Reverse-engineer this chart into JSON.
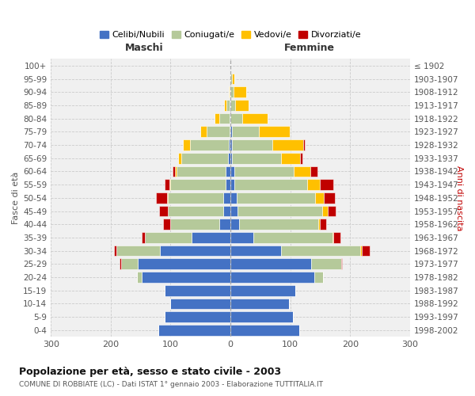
{
  "age_groups": [
    "100+",
    "95-99",
    "90-94",
    "85-89",
    "80-84",
    "75-79",
    "70-74",
    "65-69",
    "60-64",
    "55-59",
    "50-54",
    "45-49",
    "40-44",
    "35-39",
    "30-34",
    "25-29",
    "20-24",
    "15-19",
    "10-14",
    "5-9",
    "0-4"
  ],
  "birth_years": [
    "≤ 1902",
    "1903-1907",
    "1908-1912",
    "1913-1917",
    "1918-1922",
    "1923-1927",
    "1928-1932",
    "1933-1937",
    "1938-1942",
    "1943-1947",
    "1948-1952",
    "1953-1957",
    "1958-1962",
    "1963-1967",
    "1968-1972",
    "1973-1977",
    "1978-1982",
    "1983-1987",
    "1988-1992",
    "1993-1997",
    "1998-2002"
  ],
  "males": {
    "celibe": [
      0,
      0,
      0,
      1,
      1,
      2,
      3,
      4,
      8,
      8,
      12,
      12,
      18,
      65,
      118,
      155,
      148,
      110,
      100,
      110,
      120
    ],
    "coniugato": [
      0,
      0,
      2,
      6,
      18,
      38,
      65,
      78,
      82,
      92,
      92,
      92,
      82,
      78,
      72,
      28,
      8,
      0,
      0,
      0,
      0
    ],
    "vedovo": [
      0,
      0,
      1,
      3,
      8,
      10,
      12,
      5,
      3,
      2,
      2,
      1,
      0,
      0,
      0,
      0,
      0,
      0,
      0,
      0,
      0
    ],
    "divorziato": [
      0,
      0,
      0,
      0,
      0,
      0,
      0,
      0,
      3,
      8,
      18,
      14,
      12,
      5,
      5,
      2,
      0,
      0,
      0,
      0,
      0
    ]
  },
  "females": {
    "nubile": [
      0,
      0,
      0,
      0,
      0,
      2,
      2,
      3,
      6,
      6,
      10,
      12,
      15,
      38,
      85,
      135,
      140,
      108,
      98,
      105,
      115
    ],
    "coniugata": [
      0,
      2,
      5,
      8,
      20,
      45,
      68,
      82,
      100,
      122,
      132,
      142,
      132,
      132,
      132,
      50,
      15,
      0,
      0,
      0,
      0
    ],
    "vedova": [
      0,
      5,
      22,
      22,
      42,
      52,
      52,
      32,
      28,
      22,
      14,
      8,
      3,
      2,
      2,
      0,
      0,
      0,
      0,
      0,
      0
    ],
    "divorziata": [
      0,
      0,
      0,
      0,
      0,
      0,
      2,
      3,
      12,
      22,
      18,
      14,
      10,
      12,
      14,
      2,
      0,
      0,
      0,
      0,
      0
    ]
  },
  "colors": {
    "celibe_nubile": "#4472c4",
    "coniugato": "#b5c99a",
    "vedovo": "#ffc000",
    "divorziato": "#c00000"
  },
  "xlim": 300,
  "title": "Popolazione per età, sesso e stato civile - 2003",
  "subtitle": "COMUNE DI ROBBIATE (LC) - Dati ISTAT 1° gennaio 2003 - Elaborazione TUTTITALIA.IT",
  "xlabel_left": "Maschi",
  "xlabel_right": "Femmine",
  "ylabel_left": "Fasce di età",
  "ylabel_right": "Anni di nascita",
  "legend_labels": [
    "Celibi/Nubili",
    "Coniugati/e",
    "Vedovi/e",
    "Divorziati/e"
  ],
  "bg_color": "#f0f0f0"
}
